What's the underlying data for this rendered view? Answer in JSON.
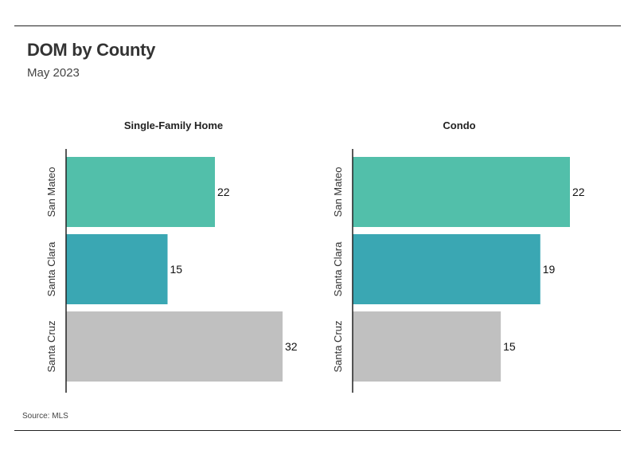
{
  "header": {
    "title": "DOM by County",
    "subtitle": "May 2023"
  },
  "footer": {
    "source": "Source:  MLS"
  },
  "colors": {
    "San Mateo": "#52bfaa",
    "Santa Clara": "#3aa7b3",
    "Santa Cruz": "#c0c0c0"
  },
  "chart_data": [
    {
      "type": "bar",
      "orientation": "horizontal",
      "title": "Single-Family Home",
      "categories": [
        "San Mateo",
        "Santa Clara",
        "Santa Cruz"
      ],
      "values": [
        22,
        15,
        32
      ],
      "xlim": [
        0,
        32
      ],
      "grid": false
    },
    {
      "type": "bar",
      "orientation": "horizontal",
      "title": "Condo",
      "categories": [
        "San Mateo",
        "Santa Clara",
        "Santa Cruz"
      ],
      "values": [
        22,
        19,
        15
      ],
      "xlim": [
        0,
        22
      ],
      "grid": false
    }
  ]
}
